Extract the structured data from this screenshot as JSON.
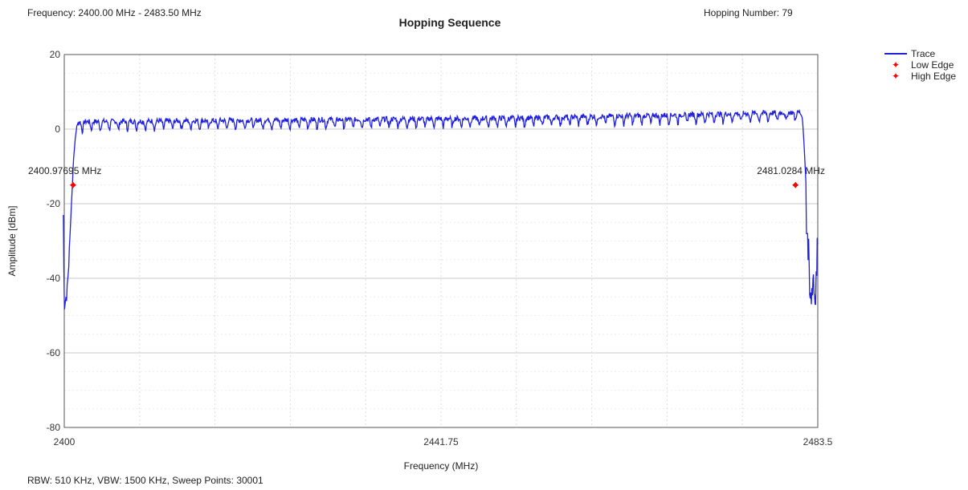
{
  "header": {
    "frequency_range": "Frequency: 2400.00 MHz - 2483.50 MHz",
    "hopping_number": "Hopping Number: 79"
  },
  "footer": {
    "settings": "RBW: 510 KHz,  VBW: 1500 KHz,  Sweep Points: 30001"
  },
  "chart_data": {
    "type": "line",
    "title": "Hopping Sequence",
    "xlabel": "Frequency (MHz)",
    "ylabel": "Amplitude [dBm]",
    "xlim": [
      2400,
      2483.5
    ],
    "ylim": [
      -80,
      20
    ],
    "xticks": [
      "2400",
      "2441.75",
      "2483.5"
    ],
    "yticks": [
      "20",
      "0",
      "-20",
      "-40",
      "-60",
      "-80"
    ],
    "grid": true,
    "legend_position": "top-right",
    "colors": {
      "trace": "#1f1fe0",
      "markers": "#ff0000",
      "grid": "#d4d4d4"
    },
    "series": [
      {
        "name": "Trace",
        "x": [
          2399.9,
          2400.0,
          2400.3,
          2400.5,
          2400.7,
          2400.9,
          2401.0,
          2401.2,
          2401.4,
          2401.7,
          2402.0,
          2402.2,
          2450.0,
          2481.5,
          2481.8,
          2482.0,
          2482.2,
          2482.4,
          2482.6,
          2482.8,
          2483.0,
          2483.2,
          2483.5
        ],
        "values": [
          -23,
          -47,
          -44,
          -36,
          -25,
          -15,
          -9,
          -3,
          1,
          2,
          1.5,
          2,
          3,
          4.5,
          3,
          -5,
          -15,
          -28,
          -40,
          -46,
          -38,
          -47,
          -29
        ]
      }
    ],
    "markers": [
      {
        "name": "Low Edge",
        "x": 2400.97695,
        "y": -15,
        "label": "2400.97695 MHz"
      },
      {
        "name": "High Edge",
        "x": 2481.0284,
        "y": -15,
        "label": "2481.0284 MHz"
      }
    ]
  }
}
